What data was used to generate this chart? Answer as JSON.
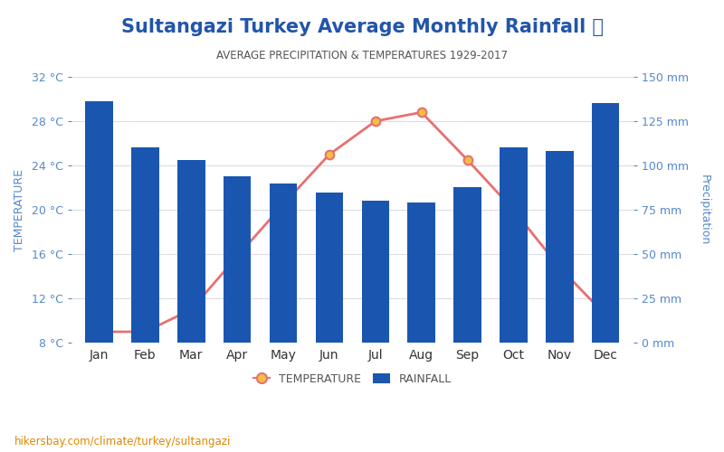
{
  "title": "Sultangazi Turkey Average Monthly Rainfall 🌧",
  "subtitle": "AVERAGE PRECIPITATION & TEMPERATURES 1929-2017",
  "months": [
    "Jan",
    "Feb",
    "Mar",
    "Apr",
    "May",
    "Jun",
    "Jul",
    "Aug",
    "Sep",
    "Oct",
    "Nov",
    "Dec"
  ],
  "rainfall_mm": [
    136,
    110,
    103,
    94,
    90,
    85,
    80,
    79,
    88,
    110,
    108,
    135
  ],
  "temperature_c": [
    9.0,
    9.0,
    11.0,
    15.8,
    20.5,
    25.0,
    28.0,
    28.8,
    24.5,
    20.0,
    14.8,
    10.5
  ],
  "bar_color": "#1a56b0",
  "line_color": "#e87070",
  "marker_color": "#f0c040",
  "marker_edge_color": "#e87070",
  "left_ylim": [
    8,
    32
  ],
  "left_yticks": [
    8,
    12,
    16,
    20,
    24,
    28,
    32
  ],
  "left_ytick_labels": [
    "8 °C",
    "12 °C",
    "16 °C",
    "20 °C",
    "24 °C",
    "28 °C",
    "32 °C"
  ],
  "right_ylim": [
    0,
    150
  ],
  "right_yticks": [
    0,
    25,
    50,
    75,
    100,
    125,
    150
  ],
  "right_ytick_labels": [
    "0 mm",
    "25 mm",
    "50 mm",
    "75 mm",
    "100 mm",
    "125 mm",
    "150 mm"
  ],
  "ylabel_left": "TEMPERATURE",
  "ylabel_right": "Precipitation",
  "footer_text": "hikersbay.com/climate/turkey/sultangazi",
  "title_color": "#2255aa",
  "subtitle_color": "#555555",
  "axis_label_color": "#5588cc",
  "footer_color": "#dd8800",
  "background_color": "#ffffff",
  "grid_color": "#dddddd"
}
